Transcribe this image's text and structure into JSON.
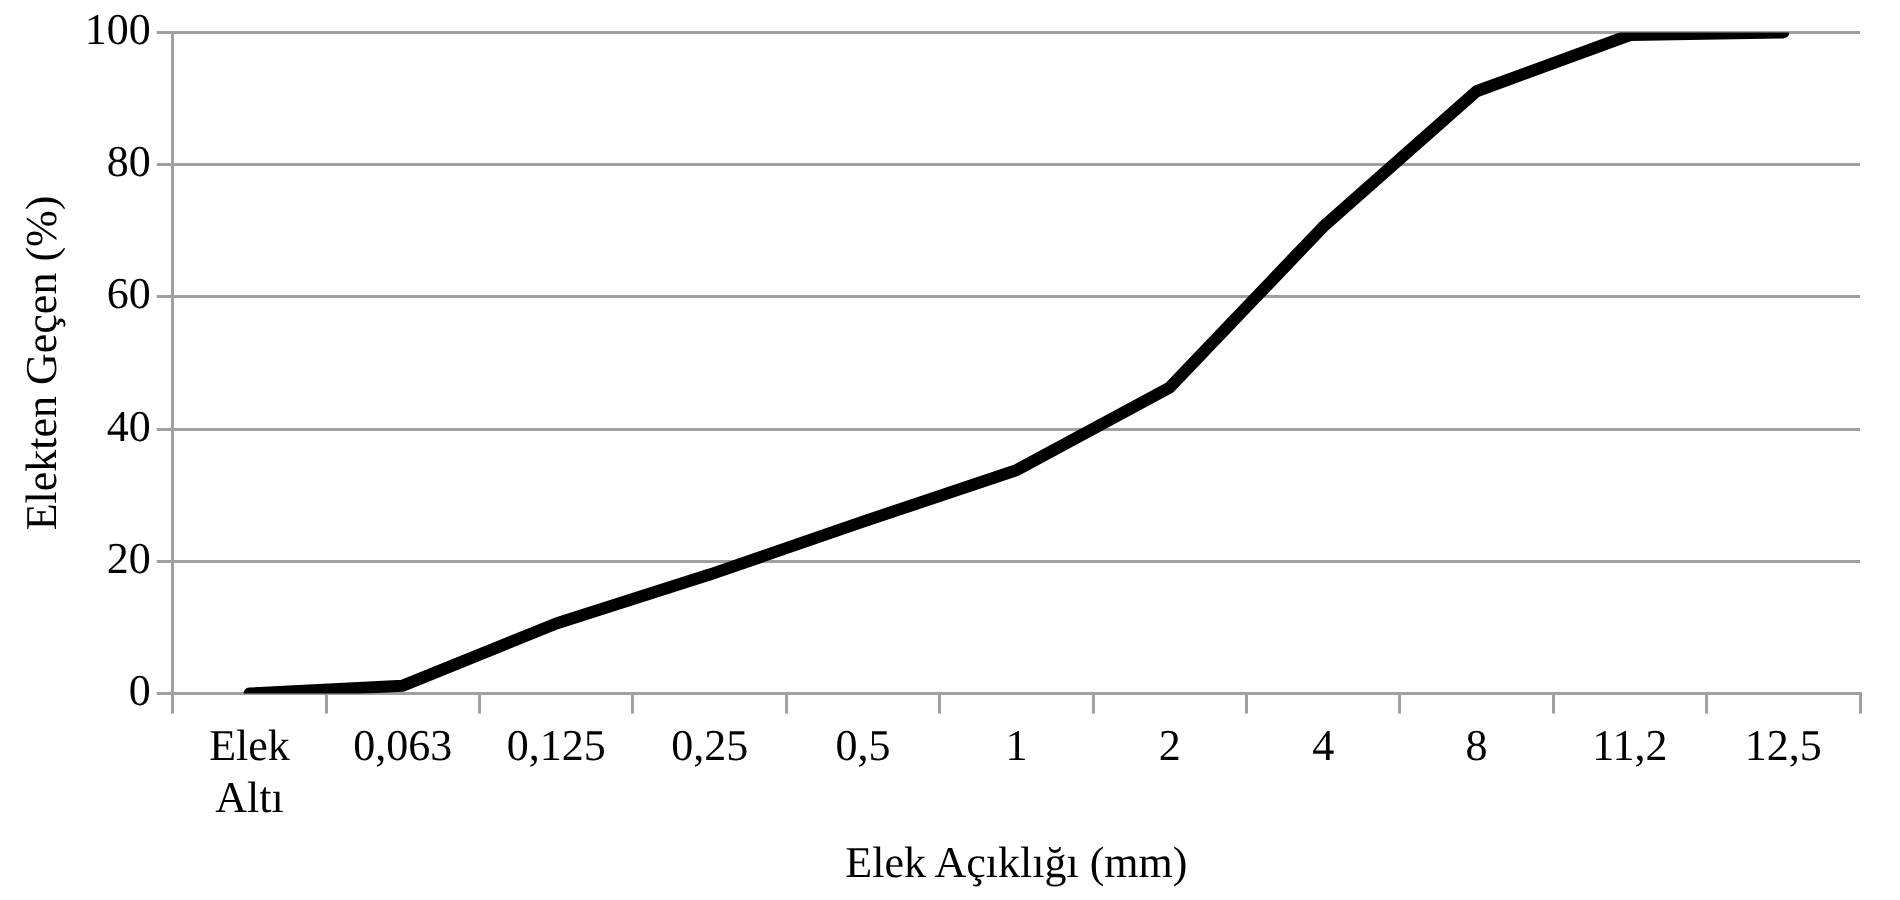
{
  "chart_data": {
    "type": "line",
    "xlabel": "Elek Açıklığı (mm)",
    "ylabel": "Elekten Geçen (%)",
    "categories": [
      "Elek Altı",
      "0,063",
      "0,125",
      "0,25",
      "0,5",
      "1",
      "2",
      "4",
      "8",
      "11,2",
      "12,5"
    ],
    "series": [
      {
        "color": "#000000",
        "values": [
          0,
          1.2,
          10.6,
          18,
          26,
          33.8,
          46.3,
          70.6,
          91.1,
          99.6,
          100
        ]
      }
    ],
    "ylim": [
      0,
      100
    ],
    "yticks": [
      0,
      20,
      40,
      60,
      80,
      100
    ],
    "grid": "y",
    "legend": false,
    "marker": "none",
    "line_style": "solid"
  }
}
